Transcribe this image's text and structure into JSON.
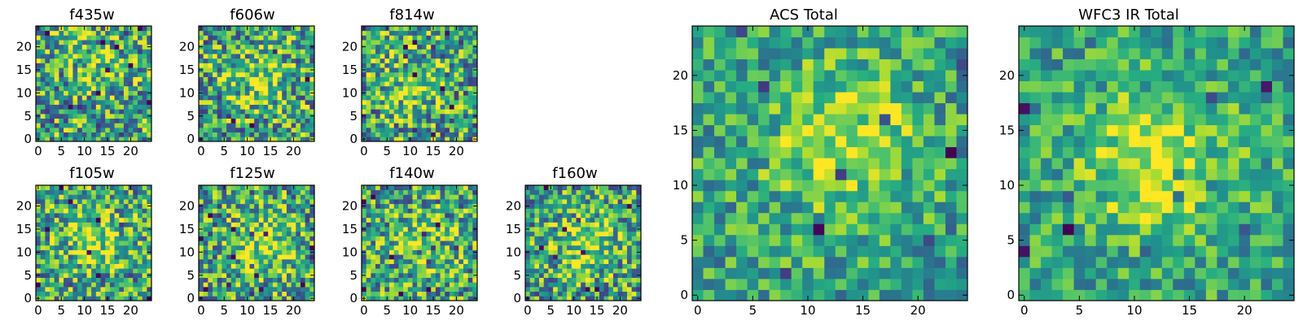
{
  "chart_data": [
    {
      "type": "heatmap",
      "title": "f435w",
      "grid": [
        25,
        25
      ],
      "xticks": [
        "0",
        "5",
        "10",
        "15",
        "20"
      ],
      "yticks": [
        "0",
        "5",
        "10",
        "15",
        "20"
      ],
      "seed": 11,
      "peak": [
        13,
        15
      ],
      "peak_strength": 0.22,
      "noise": 0.85,
      "colormap": "viridis",
      "vrange": [
        0,
        1
      ]
    },
    {
      "type": "heatmap",
      "title": "f606w",
      "grid": [
        25,
        25
      ],
      "xticks": [
        "0",
        "5",
        "10",
        "15",
        "20"
      ],
      "yticks": [
        "0",
        "5",
        "10",
        "15",
        "20"
      ],
      "seed": 23,
      "peak": [
        13,
        13
      ],
      "peak_strength": 0.28,
      "noise": 0.85,
      "colormap": "viridis",
      "vrange": [
        0,
        1
      ]
    },
    {
      "type": "heatmap",
      "title": "f814w",
      "grid": [
        25,
        25
      ],
      "xticks": [
        "0",
        "5",
        "10",
        "15",
        "20"
      ],
      "yticks": [
        "0",
        "5",
        "10",
        "15",
        "20"
      ],
      "seed": 37,
      "peak": [
        10,
        12
      ],
      "peak_strength": 0.25,
      "noise": 0.85,
      "colormap": "viridis",
      "vrange": [
        0,
        1
      ]
    },
    {
      "type": "heatmap",
      "title": "f105w",
      "grid": [
        25,
        25
      ],
      "xticks": [
        "0",
        "5",
        "10",
        "15",
        "20"
      ],
      "yticks": [
        "0",
        "5",
        "10",
        "15",
        "20"
      ],
      "seed": 41,
      "peak": [
        12,
        13
      ],
      "peak_strength": 0.3,
      "noise": 0.8,
      "colormap": "viridis",
      "vrange": [
        0,
        1
      ]
    },
    {
      "type": "heatmap",
      "title": "f125w",
      "grid": [
        25,
        25
      ],
      "xticks": [
        "0",
        "5",
        "10",
        "15",
        "20"
      ],
      "yticks": [
        "0",
        "5",
        "10",
        "15",
        "20"
      ],
      "seed": 53,
      "peak": [
        13,
        12
      ],
      "peak_strength": 0.3,
      "noise": 0.8,
      "colormap": "viridis",
      "vrange": [
        0,
        1
      ]
    },
    {
      "type": "heatmap",
      "title": "f140w",
      "grid": [
        25,
        25
      ],
      "xticks": [
        "0",
        "5",
        "10",
        "15",
        "20"
      ],
      "yticks": [
        "0",
        "5",
        "10",
        "15",
        "20"
      ],
      "seed": 67,
      "peak": [
        14,
        12
      ],
      "peak_strength": 0.25,
      "noise": 0.8,
      "colormap": "viridis",
      "vrange": [
        0,
        1
      ]
    },
    {
      "type": "heatmap",
      "title": "f160w",
      "grid": [
        25,
        25
      ],
      "xticks": [
        "0",
        "5",
        "10",
        "15",
        "20"
      ],
      "yticks": [
        "0",
        "5",
        "10",
        "15",
        "20"
      ],
      "seed": 79,
      "peak": [
        13,
        12
      ],
      "peak_strength": 0.28,
      "noise": 0.8,
      "colormap": "viridis",
      "vrange": [
        0,
        1
      ]
    },
    {
      "type": "heatmap",
      "title": "ACS Total",
      "grid": [
        25,
        25
      ],
      "xticks": [
        "0",
        "5",
        "10",
        "15",
        "20"
      ],
      "yticks": [
        "0",
        "5",
        "10",
        "15",
        "20"
      ],
      "seed": 97,
      "peak": [
        13,
        14
      ],
      "peak_strength": 0.35,
      "noise": 0.55,
      "colormap": "viridis",
      "vrange": [
        0,
        1
      ]
    },
    {
      "type": "heatmap",
      "title": "WFC3 IR Total",
      "grid": [
        25,
        25
      ],
      "xticks": [
        "0",
        "5",
        "10",
        "15",
        "20"
      ],
      "yticks": [
        "0",
        "5",
        "10",
        "15",
        "20"
      ],
      "seed": 113,
      "peak": [
        12,
        12
      ],
      "peak_strength": 0.4,
      "noise": 0.5,
      "colormap": "viridis",
      "vrange": [
        0,
        1
      ]
    }
  ]
}
